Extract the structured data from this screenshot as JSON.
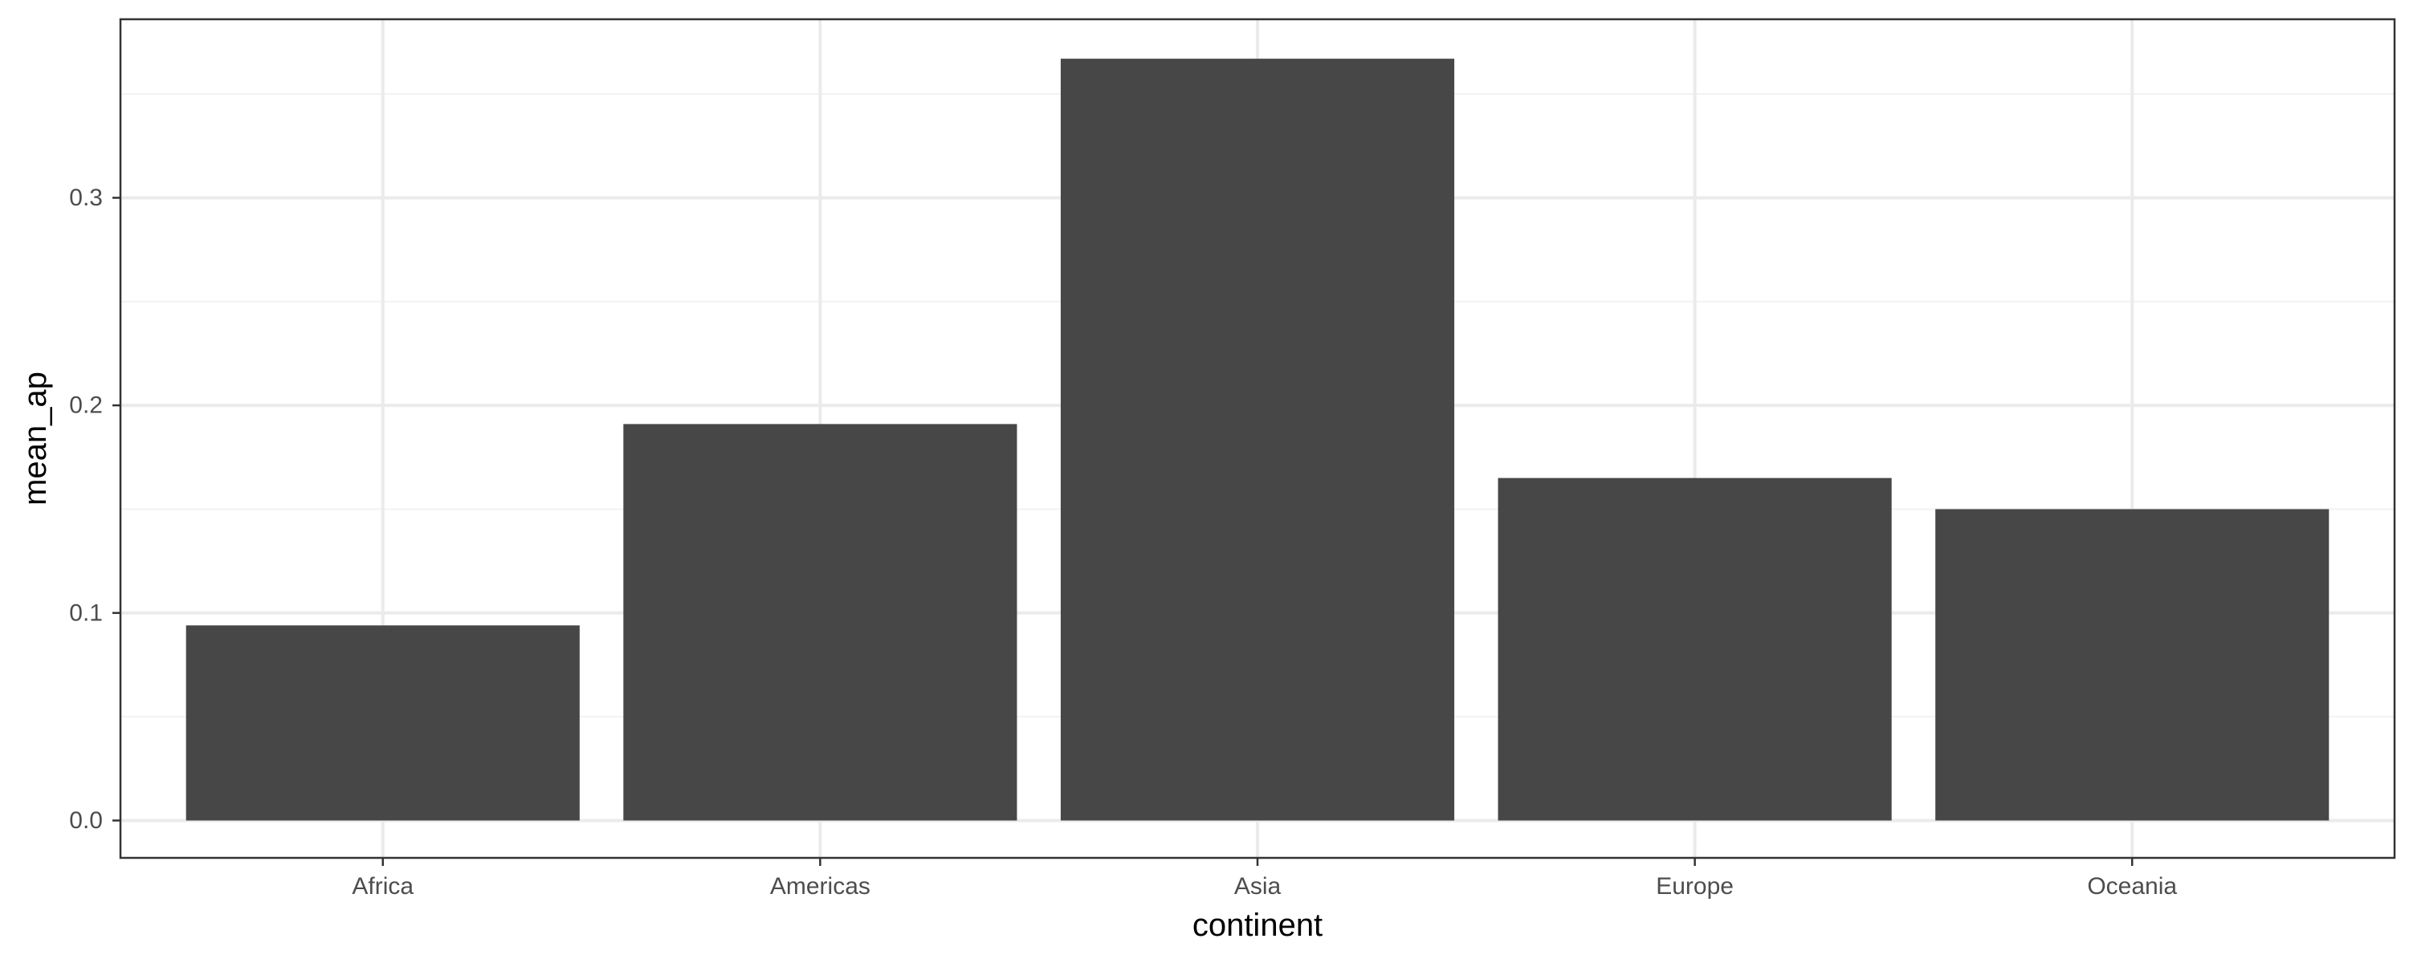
{
  "chart_data": {
    "type": "bar",
    "categories": [
      "Africa",
      "Americas",
      "Asia",
      "Europe",
      "Oceania"
    ],
    "values": [
      0.094,
      0.191,
      0.367,
      0.165,
      0.15
    ],
    "title": "",
    "xlabel": "continent",
    "ylabel": "mean_ap",
    "ylim": [
      -0.018,
      0.386
    ],
    "yticks": [
      0.0,
      0.1,
      0.2,
      0.3
    ],
    "ytick_labels": [
      "0.0",
      "0.1",
      "0.2",
      "0.3"
    ],
    "grid": true,
    "legend": "none",
    "colors": {
      "bar": "#474747",
      "grid_major": "#ebebeb",
      "grid_minor": "#f2f2f2",
      "panel_border": "#333333",
      "tick": "#333333",
      "tick_label": "#4d4d4d",
      "axis_title": "#000000"
    }
  }
}
